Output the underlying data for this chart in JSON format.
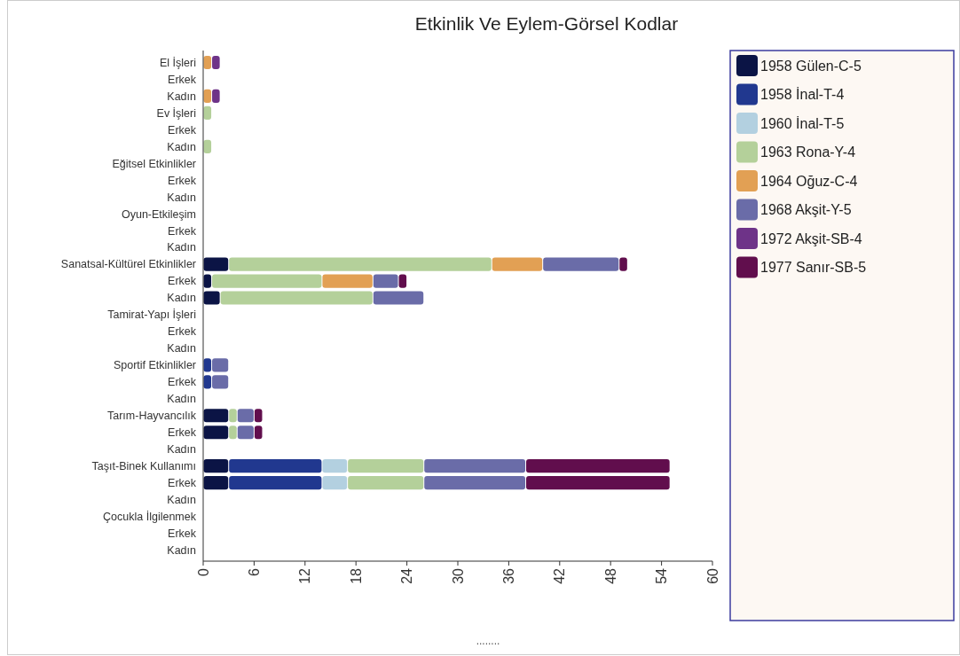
{
  "chart_data": {
    "type": "bar",
    "orientation": "horizontal",
    "stacked": true,
    "title": "Etkinlik Ve Eylem-Görsel Kodlar",
    "categories": [
      "El İşleri",
      "Erkek",
      "Kadın",
      "Ev İşleri",
      "Erkek",
      "Kadın",
      "Eğitsel Etkinlikler",
      "Erkek",
      "Kadın",
      "Oyun-Etkileşim",
      "Erkek",
      "Kadın",
      "Sanatsal-Kültürel Etkinlikler",
      "Erkek",
      "Kadın",
      "Tamirat-Yapı İşleri",
      "Erkek",
      "Kadın",
      "Sportif Etkinlikler",
      "Erkek",
      "Kadın",
      "Tarım-Hayvancılık",
      "Erkek",
      "Kadın",
      "Taşıt-Binek Kullanımı",
      "Erkek",
      "Kadın",
      "Çocukla İlgilenmek",
      "Erkek",
      "Kadın"
    ],
    "series": [
      {
        "name": "1958 Gülen-C-5",
        "color": "#0b1445",
        "values": [
          null,
          null,
          null,
          null,
          null,
          null,
          null,
          null,
          null,
          null,
          null,
          null,
          3,
          1,
          2,
          null,
          null,
          null,
          null,
          null,
          null,
          3,
          3,
          null,
          3,
          3,
          null,
          null,
          null,
          null
        ]
      },
      {
        "name": "1958 İnal-T-4",
        "color": "#21388f",
        "values": [
          null,
          null,
          null,
          null,
          null,
          null,
          null,
          null,
          null,
          null,
          null,
          null,
          null,
          null,
          null,
          null,
          null,
          null,
          1,
          1,
          null,
          null,
          null,
          null,
          11,
          11,
          null,
          null,
          null,
          null
        ]
      },
      {
        "name": "1960 İnal-T-5",
        "color": "#b3d0e0",
        "values": [
          null,
          null,
          null,
          null,
          null,
          null,
          null,
          null,
          null,
          null,
          null,
          null,
          null,
          null,
          null,
          null,
          null,
          null,
          null,
          null,
          null,
          null,
          null,
          null,
          3,
          3,
          null,
          null,
          null,
          null
        ]
      },
      {
        "name": "1963 Rona-Y-4",
        "color": "#b4d09a",
        "values": [
          null,
          null,
          null,
          1,
          null,
          1,
          null,
          null,
          null,
          null,
          null,
          null,
          31,
          13,
          18,
          null,
          null,
          null,
          null,
          null,
          null,
          1,
          1,
          null,
          9,
          9,
          null,
          null,
          null,
          null
        ]
      },
      {
        "name": "1964 Oğuz-C-4",
        "color": "#e2a054",
        "values": [
          1,
          null,
          1,
          null,
          null,
          null,
          null,
          null,
          null,
          null,
          null,
          null,
          6,
          6,
          null,
          null,
          null,
          null,
          null,
          null,
          null,
          null,
          null,
          null,
          null,
          null,
          null,
          null,
          null,
          null
        ]
      },
      {
        "name": "1968 Akşit-Y-5",
        "color": "#6a6ca8",
        "values": [
          null,
          null,
          null,
          null,
          null,
          null,
          null,
          null,
          null,
          null,
          null,
          null,
          9,
          3,
          6,
          null,
          null,
          null,
          2,
          2,
          null,
          2,
          2,
          null,
          12,
          12,
          null,
          null,
          null,
          null
        ]
      },
      {
        "name": "1972 Akşit-SB-4",
        "color": "#6e3388",
        "values": [
          1,
          null,
          1,
          null,
          null,
          null,
          null,
          null,
          null,
          null,
          null,
          null,
          null,
          null,
          null,
          null,
          null,
          null,
          null,
          null,
          null,
          null,
          null,
          null,
          null,
          null,
          null,
          null,
          null,
          null
        ]
      },
      {
        "name": "1977 Sanır-SB-5",
        "color": "#610e4d",
        "values": [
          null,
          null,
          null,
          null,
          null,
          null,
          null,
          null,
          null,
          null,
          null,
          null,
          1,
          1,
          null,
          null,
          null,
          null,
          null,
          null,
          null,
          1,
          1,
          null,
          17,
          17,
          null,
          null,
          null,
          null
        ]
      }
    ],
    "xlim": [
      0,
      60
    ],
    "xticks": [
      0,
      6,
      12,
      18,
      24,
      30,
      36,
      42,
      48,
      54,
      60
    ],
    "legend": "right",
    "grid": false,
    "annotations": [
      "........"
    ]
  }
}
